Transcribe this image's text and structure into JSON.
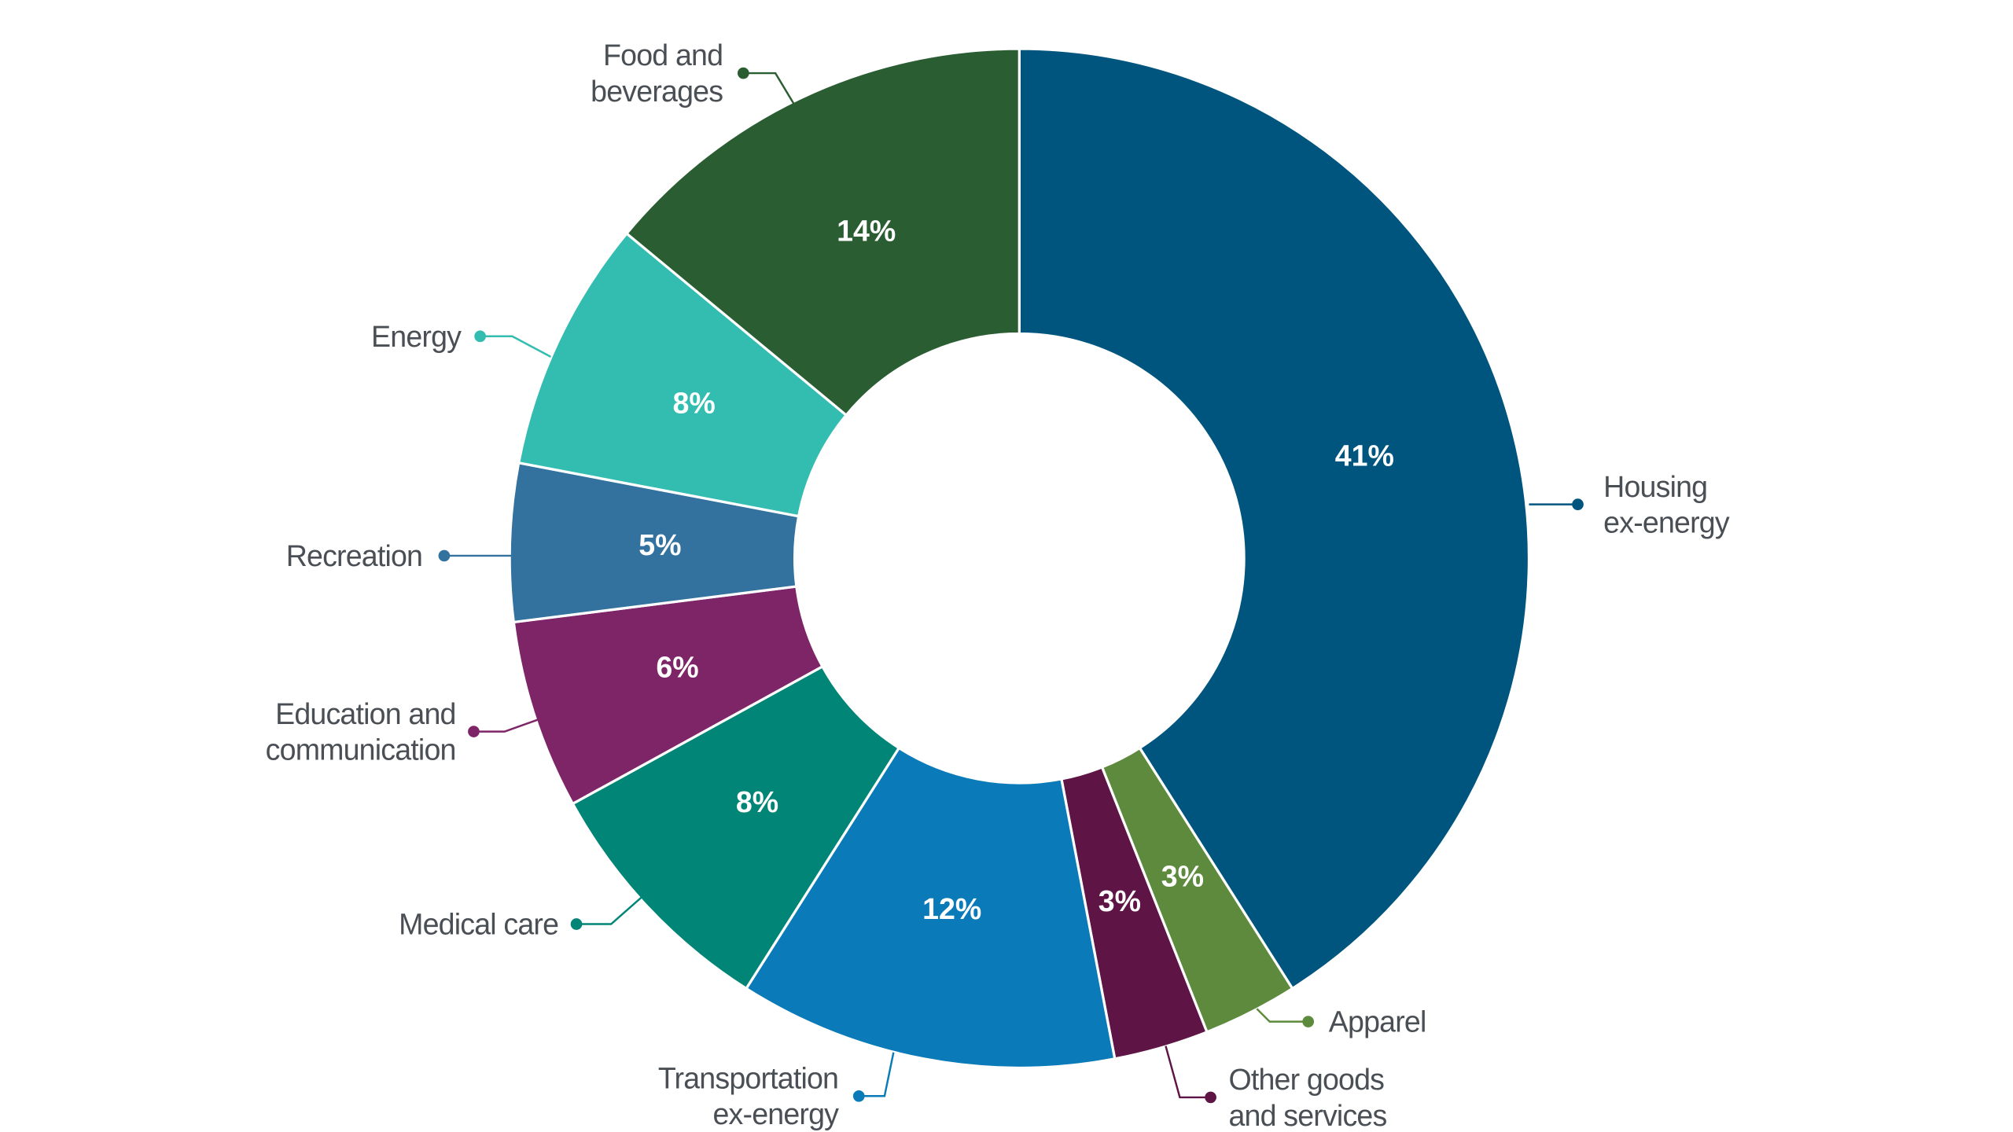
{
  "chart_data": {
    "type": "donut",
    "categories": [
      "Housing ex-energy",
      "Apparel",
      "Other goods and services",
      "Transportation ex-energy",
      "Medical care",
      "Education and communication",
      "Recreation",
      "Energy",
      "Food and beverages"
    ],
    "values": [
      41,
      3,
      3,
      12,
      8,
      6,
      5,
      8,
      14
    ],
    "value_labels": [
      "41%",
      "3%",
      "3%",
      "12%",
      "8%",
      "6%",
      "5%",
      "8%",
      "14%"
    ],
    "colors": [
      "#00557f",
      "#5e8a3e",
      "#5e1445",
      "#0a7bb8",
      "#008577",
      "#7e2568",
      "#33729e",
      "#33bdb0",
      "#2a5e32"
    ]
  }
}
